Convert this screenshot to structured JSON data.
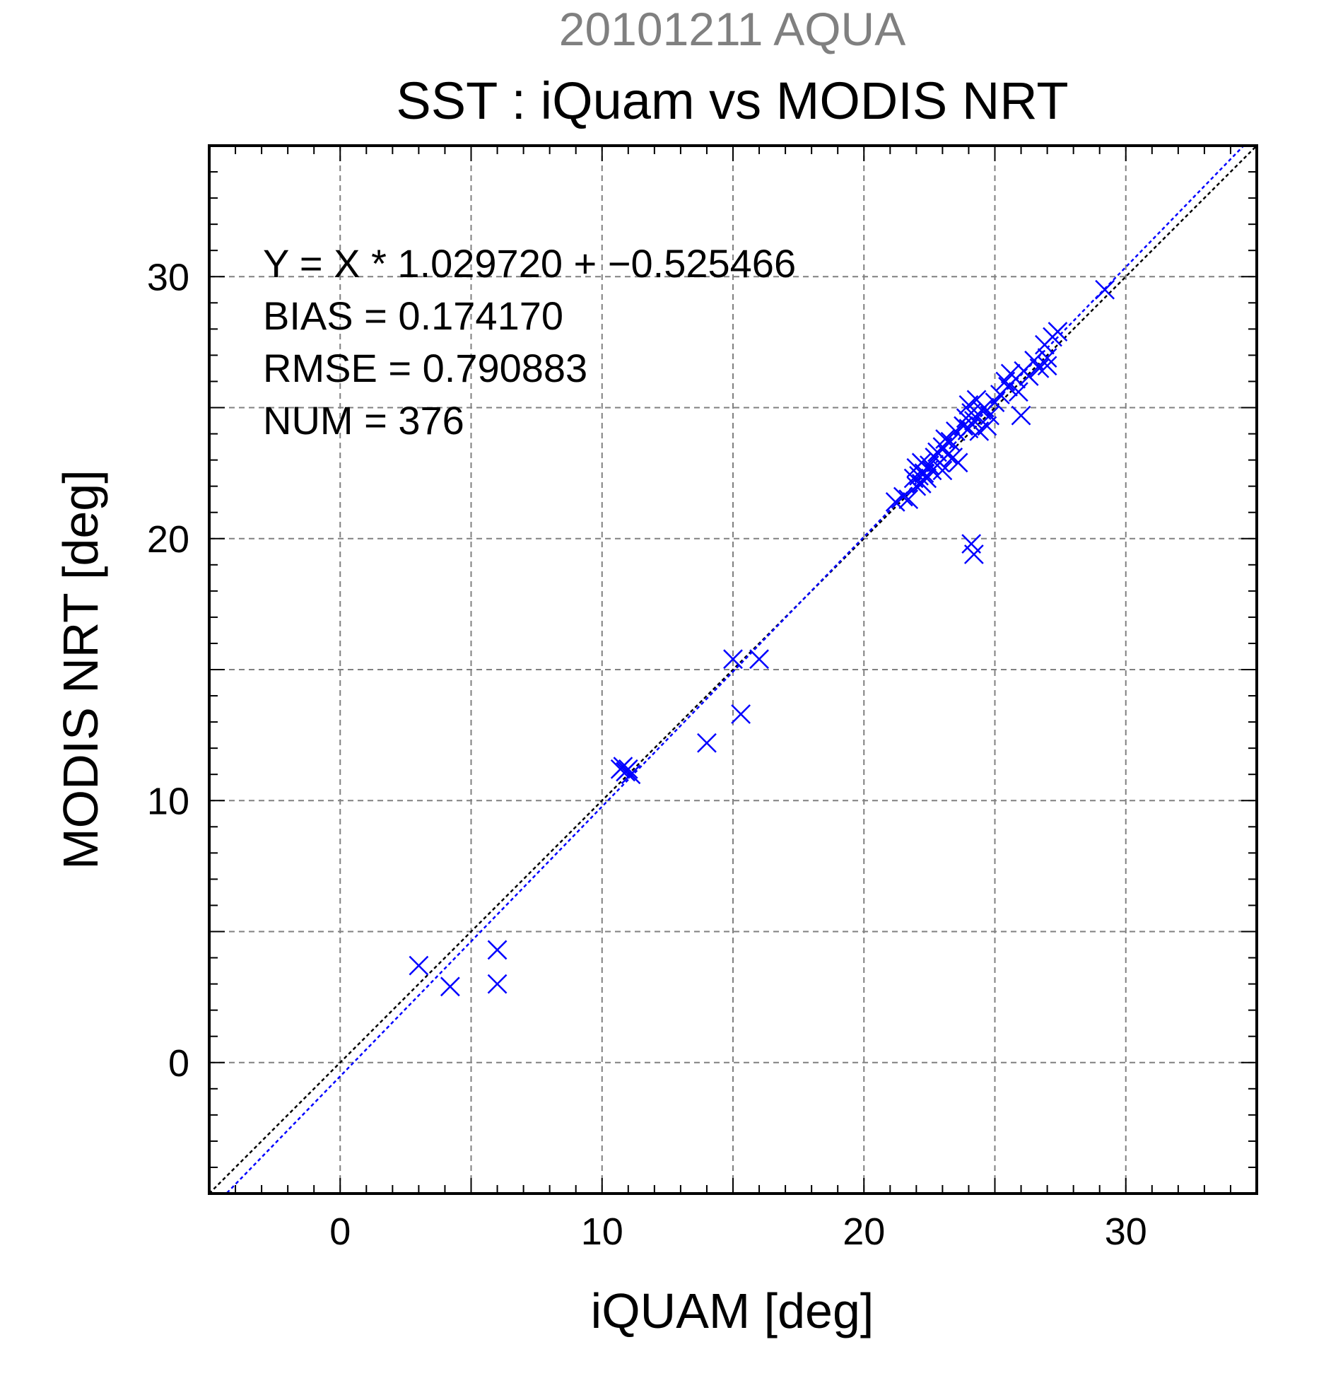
{
  "chart_data": {
    "type": "scatter",
    "title": "20101211 AQUA",
    "subtitle": "SST : iQuam vs MODIS NRT",
    "xlabel": "iQUAM [deg]",
    "ylabel": "MODIS NRT [deg]",
    "xlim": [
      -5,
      35
    ],
    "ylim": [
      -5,
      35
    ],
    "xticks": [
      0,
      10,
      20,
      30
    ],
    "yticks": [
      0,
      10,
      20,
      30
    ],
    "grid": true,
    "colors": {
      "title": "#808080",
      "points": "#0000ff",
      "fit_line": "#0000ff",
      "identity_line": "#000000",
      "grid": "#808080"
    },
    "annotations": [
      "Y = X * 1.029720 + −0.525466",
      "BIAS = 0.174170",
      "RMSE = 0.790883",
      "NUM = 376"
    ],
    "fit": {
      "slope": 1.02972,
      "intercept": -0.525466
    },
    "identity": {
      "slope": 1,
      "intercept": 0
    },
    "series": [
      {
        "marker": "x",
        "x": [
          3.0,
          4.2,
          6.0,
          6.0,
          10.7,
          10.8,
          10.9,
          11.0,
          11.1,
          14.0,
          15.0,
          15.3,
          16.0,
          21.2,
          21.5,
          21.7,
          21.9,
          22.0,
          22.0,
          22.1,
          22.2,
          22.2,
          22.3,
          22.4,
          22.5,
          22.6,
          22.7,
          22.8,
          22.9,
          23.0,
          23.0,
          23.1,
          23.2,
          23.3,
          23.4,
          23.5,
          23.6,
          23.8,
          23.9,
          24.0,
          24.0,
          24.1,
          24.2,
          24.3,
          24.4,
          24.5,
          24.6,
          24.7,
          24.8,
          25.0,
          25.2,
          25.4,
          25.5,
          25.6,
          25.8,
          25.9,
          26.0,
          26.1,
          26.3,
          26.5,
          26.7,
          26.9,
          27.0,
          27.0,
          27.2,
          27.4,
          29.2,
          24.1,
          24.2
        ],
        "y": [
          3.7,
          2.9,
          4.3,
          3.0,
          11.2,
          11.3,
          11.1,
          11.2,
          11.0,
          12.2,
          15.4,
          13.3,
          15.4,
          21.4,
          21.6,
          21.5,
          22.3,
          22.0,
          22.7,
          22.4,
          22.1,
          22.9,
          22.5,
          22.3,
          22.8,
          22.6,
          23.1,
          23.3,
          22.9,
          23.5,
          22.6,
          23.8,
          23.2,
          23.7,
          23.1,
          24.1,
          22.9,
          24.3,
          24.6,
          24.2,
          25.1,
          24.8,
          24.5,
          25.3,
          24.1,
          24.9,
          25.0,
          24.3,
          24.7,
          25.2,
          25.5,
          26.0,
          25.8,
          26.3,
          26.1,
          25.6,
          24.7,
          26.4,
          26.2,
          26.8,
          26.5,
          27.4,
          26.9,
          26.6,
          27.7,
          27.9,
          29.5,
          19.8,
          19.4
        ]
      }
    ]
  }
}
